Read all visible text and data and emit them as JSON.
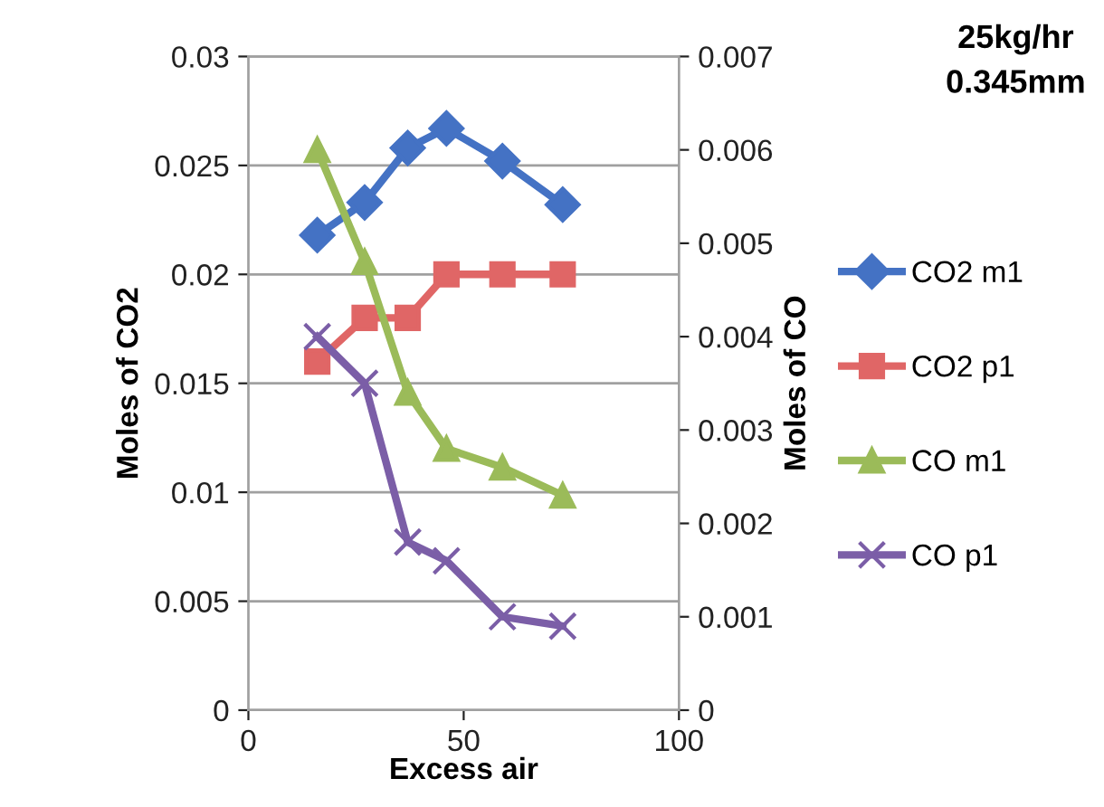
{
  "chart_data": {
    "type": "line",
    "title": "25kg/hr\n0.345mm",
    "xlabel": "Excess air",
    "ylabel": "Moles of CO2",
    "y2label": "Moles of CO",
    "x": [
      16,
      27,
      37,
      46,
      59,
      73
    ],
    "series": [
      {
        "name": "CO2 m1",
        "color": "#4472c4",
        "marker": "diamond",
        "values": [
          0.0218,
          0.0233,
          0.0258,
          0.0267,
          0.0252,
          0.0232
        ]
      },
      {
        "name": "CO2 p1",
        "color": "#e06666",
        "marker": "square",
        "values": [
          0.016,
          0.018,
          0.018,
          0.02,
          0.02,
          0.02
        ]
      },
      {
        "name": "CO m1",
        "color": "#9bbb59",
        "marker": "triangle",
        "axis": "y2",
        "values": [
          0.006,
          0.0048,
          0.0034,
          0.0028,
          0.0026,
          0.0023
        ]
      },
      {
        "name": "CO p1",
        "color": "#7b5ea7",
        "marker": "cross",
        "axis": "y2",
        "values": [
          0.004,
          0.0035,
          0.0018,
          0.0016,
          0.001,
          0.0009
        ]
      }
    ],
    "xlim": [
      0,
      100
    ],
    "xticks": [
      0,
      50,
      100
    ],
    "ylim": [
      0,
      0.03
    ],
    "yticks": [
      0,
      0.005,
      0.01,
      0.015,
      0.02,
      0.025,
      0.03
    ],
    "y2lim": [
      0,
      0.007
    ],
    "y2ticks": [
      0,
      0.001,
      0.002,
      0.003,
      0.004,
      0.005,
      0.006,
      0.007
    ],
    "grid": "y",
    "legend": "right"
  }
}
